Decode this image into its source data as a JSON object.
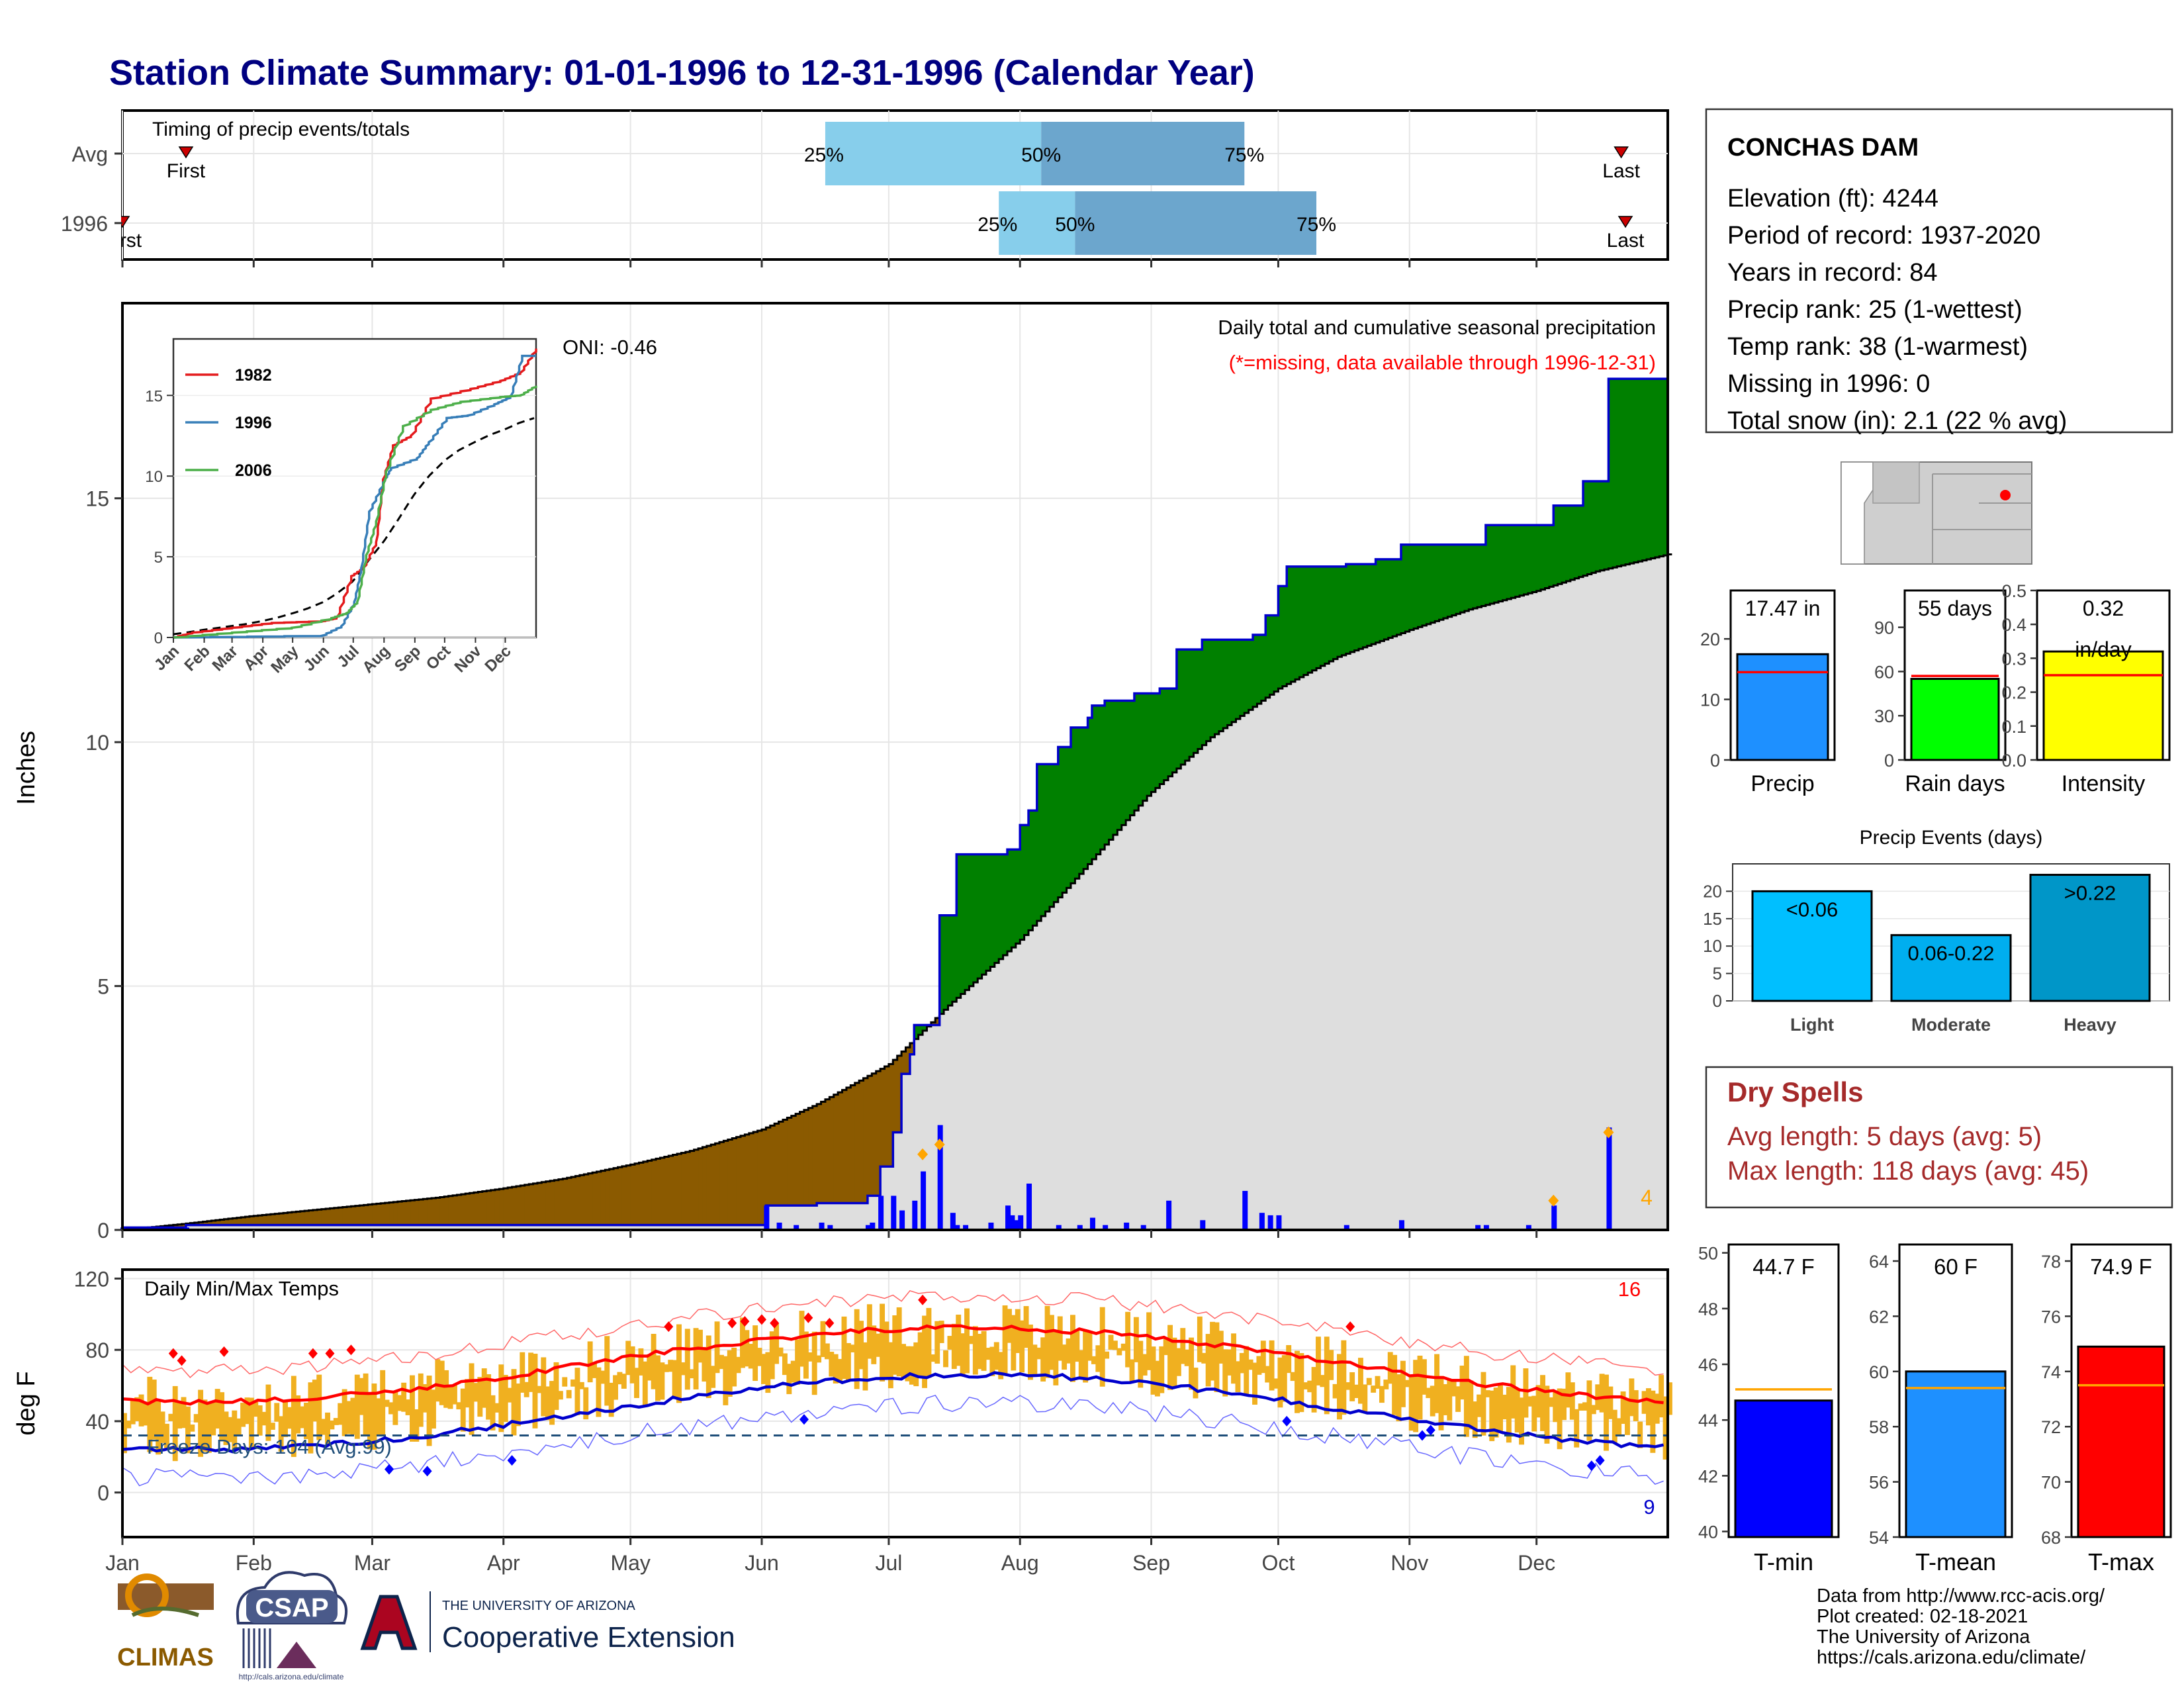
{
  "title": "Station Climate Summary: 01-01-1996 to 12-31-1996 (Calendar Year)",
  "colors": {
    "title": "#000080",
    "q_light": "#87CEEB",
    "q_dark": "#6CA6CD",
    "surplus": "#008000",
    "deficit": "#8B5A00",
    "normal_fill": "#DEDEDE",
    "precip_bar": "#0000FF",
    "temp_bar": "#F0B020",
    "tmax_line": "#FF0000",
    "tmin_line": "#0000CC",
    "dry_spells": "#A52A2A"
  },
  "timing": {
    "title": "Timing of precip events/totals",
    "rows": [
      {
        "label": "Avg",
        "first_label": "First",
        "last_label": "Last",
        "first_doy": 16,
        "last_doy": 355,
        "p25_doy": 167,
        "p50_doy": 218,
        "p75_doy": 266,
        "p25_label": "25%",
        "p50_label": "50%",
        "p75_label": "75%"
      },
      {
        "label": "1996",
        "first_label": "First",
        "last_label": "Last",
        "first_doy": 1,
        "last_doy": 356,
        "p25_doy": 208,
        "p50_doy": 226,
        "p75_doy": 283,
        "p25_label": "25%",
        "p50_label": "50%",
        "p75_label": "75%"
      }
    ]
  },
  "precip_panel": {
    "ylabel": "Inches",
    "yticks": [
      0,
      5,
      10,
      15
    ],
    "ylim": [
      0,
      19
    ],
    "caption1": "Daily total and cumulative seasonal precipitation",
    "caption2": "(*=missing, data available through 1996-12-31)",
    "oni": "ONI: -0.46",
    "count_label": "4",
    "normal_cum": [
      [
        1,
        0
      ],
      [
        15,
        0.12
      ],
      [
        31,
        0.28
      ],
      [
        45,
        0.4
      ],
      [
        59,
        0.52
      ],
      [
        75,
        0.66
      ],
      [
        90,
        0.84
      ],
      [
        105,
        1.05
      ],
      [
        121,
        1.34
      ],
      [
        135,
        1.62
      ],
      [
        152,
        2.06
      ],
      [
        165,
        2.58
      ],
      [
        182,
        3.4
      ],
      [
        196,
        4.6
      ],
      [
        213,
        5.95
      ],
      [
        227,
        7.3
      ],
      [
        243,
        8.9
      ],
      [
        258,
        10.1
      ],
      [
        274,
        11.1
      ],
      [
        288,
        11.75
      ],
      [
        305,
        12.3
      ],
      [
        319,
        12.72
      ],
      [
        335,
        13.1
      ],
      [
        349,
        13.5
      ],
      [
        366,
        13.85
      ]
    ],
    "actual_cum": [
      [
        1,
        0.05
      ],
      [
        16,
        0.1
      ],
      [
        153,
        0.1
      ],
      [
        153,
        0.5
      ],
      [
        165,
        0.55
      ],
      [
        177,
        0.7
      ],
      [
        180,
        1.3
      ],
      [
        183,
        2.0
      ],
      [
        185,
        3.2
      ],
      [
        187,
        3.6
      ],
      [
        188,
        4.2
      ],
      [
        194,
        4.3
      ],
      [
        194,
        6.45
      ],
      [
        198,
        7.7
      ],
      [
        210,
        7.8
      ],
      [
        213,
        8.3
      ],
      [
        215,
        8.6
      ],
      [
        217,
        9.55
      ],
      [
        222,
        9.9
      ],
      [
        225,
        10.3
      ],
      [
        229,
        10.5
      ],
      [
        230,
        10.75
      ],
      [
        233,
        10.85
      ],
      [
        240,
        11.0
      ],
      [
        246,
        11.1
      ],
      [
        250,
        11.9
      ],
      [
        256,
        12.1
      ],
      [
        258,
        12.1
      ],
      [
        268,
        12.2
      ],
      [
        271,
        12.6
      ],
      [
        274,
        13.2
      ],
      [
        276,
        13.6
      ],
      [
        290,
        13.65
      ],
      [
        297,
        13.75
      ],
      [
        303,
        14.05
      ],
      [
        323,
        14.45
      ],
      [
        325,
        14.45
      ],
      [
        328,
        14.45
      ],
      [
        339,
        14.85
      ],
      [
        346,
        15.35
      ],
      [
        351,
        15.35
      ],
      [
        352,
        17.45
      ],
      [
        366,
        17.45
      ]
    ],
    "daily_precip": [
      [
        1,
        0.05
      ],
      [
        16,
        0.05
      ],
      [
        153,
        0.5
      ],
      [
        156,
        0.15
      ],
      [
        160,
        0.1
      ],
      [
        166,
        0.15
      ],
      [
        168,
        0.1
      ],
      [
        177,
        0.1
      ],
      [
        178,
        0.15
      ],
      [
        180,
        0.7
      ],
      [
        183,
        0.7
      ],
      [
        185,
        0.4
      ],
      [
        188,
        0.6
      ],
      [
        190,
        1.2
      ],
      [
        194,
        2.15
      ],
      [
        197,
        0.35
      ],
      [
        198,
        0.1
      ],
      [
        200,
        0.1
      ],
      [
        206,
        0.15
      ],
      [
        210,
        0.5
      ],
      [
        211,
        0.3
      ],
      [
        212,
        0.2
      ],
      [
        213,
        0.3
      ],
      [
        215,
        0.95
      ],
      [
        222,
        0.1
      ],
      [
        227,
        0.1
      ],
      [
        230,
        0.25
      ],
      [
        233,
        0.1
      ],
      [
        238,
        0.15
      ],
      [
        242,
        0.1
      ],
      [
        248,
        0.6
      ],
      [
        256,
        0.2
      ],
      [
        266,
        0.8
      ],
      [
        270,
        0.35
      ],
      [
        272,
        0.3
      ],
      [
        274,
        0.3
      ],
      [
        290,
        0.1
      ],
      [
        303,
        0.2
      ],
      [
        321,
        0.1
      ],
      [
        323,
        0.1
      ],
      [
        333,
        0.1
      ],
      [
        339,
        0.5
      ],
      [
        352,
        2.1
      ]
    ],
    "markers_orange": [
      [
        190,
        1.55
      ],
      [
        194,
        1.75
      ],
      [
        339,
        0.6
      ],
      [
        352,
        2.0
      ]
    ]
  },
  "inset": {
    "legend": [
      "1982",
      "1996",
      "2006"
    ],
    "colors": [
      "#E41A1C",
      "#377EB8",
      "#4DAF4A"
    ],
    "yticks": [
      0,
      5,
      10,
      15
    ],
    "months": [
      "Jan",
      "Feb",
      "Mar",
      "Apr",
      "May",
      "Jun",
      "Jul",
      "Aug",
      "Sep",
      "Oct",
      "Nov",
      "Dec"
    ]
  },
  "temp_panel": {
    "ylabel": "deg F",
    "yticks": [
      0,
      40,
      80,
      120
    ],
    "ylim": [
      -25,
      125
    ],
    "title": "Daily Min/Max Temps",
    "hot_count": "16",
    "cold_count": "9",
    "freeze_label": "Freeze Days: 104 (Avg:99)",
    "freeze_line": 32
  },
  "months": [
    "Jan",
    "Feb",
    "Mar",
    "Apr",
    "May",
    "Jun",
    "Jul",
    "Aug",
    "Sep",
    "Oct",
    "Nov",
    "Dec"
  ],
  "station": {
    "name": "CONCHAS DAM",
    "lines": [
      "Elevation (ft): 4244",
      "Period of record: 1937-2020",
      "Years in record: 84",
      "Precip rank: 25 (1-wettest)",
      "Temp rank: 38 (1-warmest)",
      "Missing in 1996: 0",
      "Total snow (in): 2.1 (22 % avg)"
    ]
  },
  "summary_bars": [
    {
      "label": "Precip",
      "value_label": "17.47 in",
      "value": 17.47,
      "avg": 14.5,
      "ymax": 28,
      "ticks": [
        0,
        10,
        20
      ],
      "color": "#1E90FF"
    },
    {
      "label": "Rain days",
      "value_label": "55 days",
      "value": 55,
      "avg": 57,
      "ymax": 115,
      "ticks": [
        0,
        30,
        60,
        90
      ],
      "color": "#00FF00"
    },
    {
      "label": "Intensity",
      "value_label": "0.32",
      "unit_label": "in/day",
      "value": 0.32,
      "avg": 0.25,
      "ymax": 0.5,
      "ticks": [
        "0.0",
        "0.1",
        "0.2",
        "0.3",
        "0.4",
        "0.5"
      ],
      "color": "#FFFF00"
    }
  ],
  "events": {
    "title": "Precip Events (days)",
    "ticks": [
      0,
      5,
      10,
      15,
      20
    ],
    "bars": [
      {
        "category": "Light",
        "label": "<0.06",
        "value": 20,
        "color": "#00BFFF"
      },
      {
        "category": "Moderate",
        "label": "0.06-0.22",
        "value": 12,
        "color": "#00AEEF"
      },
      {
        "category": "Heavy",
        "label": ">0.22",
        "value": 23,
        "color": "#0096C8"
      }
    ]
  },
  "dry_spells": {
    "title": "Dry Spells",
    "avg": "Avg length: 5 days (avg: 5)",
    "max": "Max length: 118 days (avg: 45)"
  },
  "temp_bars": [
    {
      "label": "T-min",
      "value_label": "44.7 F",
      "value": 44.7,
      "avg": 45.1,
      "ymin": 39.8,
      "ymax": 50.3,
      "ticks": [
        40,
        42,
        44,
        46,
        48,
        50
      ],
      "color": "#0000FF"
    },
    {
      "label": "T-mean",
      "value_label": "60 F",
      "value": 60.0,
      "avg": 59.4,
      "ymin": 54,
      "ymax": 64.6,
      "ticks": [
        54,
        56,
        58,
        60,
        62,
        64
      ],
      "color": "#1E90FF"
    },
    {
      "label": "T-max",
      "value_label": "74.9 F",
      "value": 74.9,
      "avg": 73.5,
      "ymin": 68,
      "ymax": 78.6,
      "ticks": [
        68,
        70,
        72,
        74,
        76,
        78
      ],
      "color": "#FF0000"
    }
  ],
  "footer": {
    "lines": [
      "Data from http://www.rcc-acis.org/",
      "Plot created: 02-18-2021",
      "The University of Arizona",
      "https://cals.arizona.edu/climate/"
    ],
    "climas": "CLIMAS",
    "csap": "CSAP",
    "csap_url": "http://cals.arizona.edu/climate",
    "ua_small": "THE UNIVERSITY OF ARIZONA",
    "ua_big": "Cooperative Extension"
  }
}
